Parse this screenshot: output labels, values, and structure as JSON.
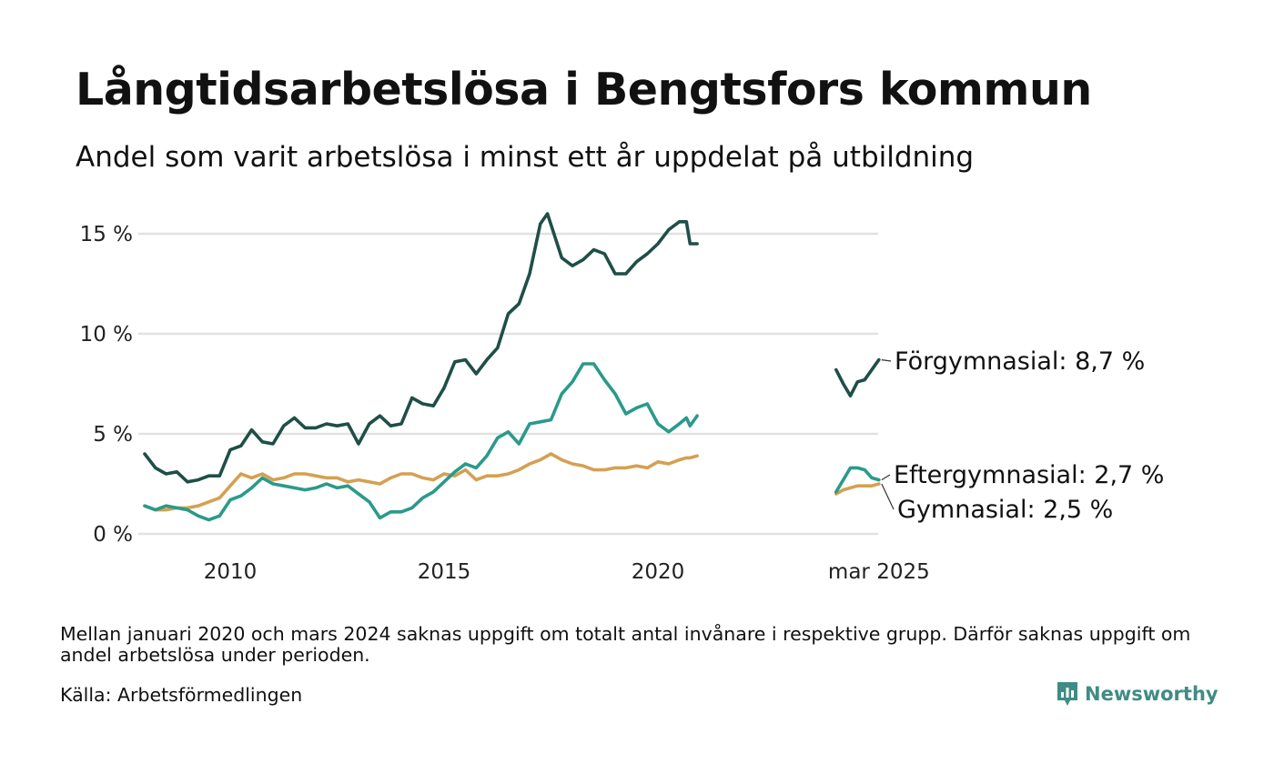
{
  "title": "Långtidsarbetslösa i Bengtsfors kommun",
  "subtitle": "Andel som varit arbetslösa i minst ett år uppdelat på utbildning",
  "footnote": "Mellan januari 2020 och mars 2024 saknas uppgift om totalt antal invånare i respektive grupp. Därför saknas uppgift om andel arbetslösa under perioden.",
  "source": "Källa: Arbetsförmedlingen",
  "logo_text": "Newsworthy",
  "chart_data": {
    "type": "line",
    "title": "Långtidsarbetslösa i Bengtsfors kommun",
    "subtitle": "Andel som varit arbetslösa i minst ett år uppdelat på utbildning",
    "xlabel": "",
    "ylabel": "",
    "ylim": [
      0,
      16
    ],
    "y_ticks": [
      0,
      5,
      10,
      15
    ],
    "y_tick_labels": [
      "0 %",
      "5 %",
      "10 %",
      "15 %"
    ],
    "x_ticks": [
      {
        "x": "2010-01",
        "label": "2010"
      },
      {
        "x": "2015-01",
        "label": "2015"
      },
      {
        "x": "2020-01",
        "label": "2020"
      },
      {
        "x": "2025-03",
        "label": "mar 2025"
      }
    ],
    "grid": true,
    "legend": "direct labels at line ends (right)",
    "colors": {
      "Förgymnasial": "#1f4f47",
      "Eftergymnasial": "#2a9a8b",
      "Gymnasial": "#d4a052",
      "grid": "#e1e1e1"
    },
    "series": [
      {
        "name": "Förgymnasial",
        "end_label": "Förgymnasial: 8,7 %",
        "segments": [
          [
            [
              "2008-01",
              4.0
            ],
            [
              "2008-04",
              3.3
            ],
            [
              "2008-07",
              3.0
            ],
            [
              "2008-10",
              3.1
            ],
            [
              "2009-01",
              2.6
            ],
            [
              "2009-04",
              2.7
            ],
            [
              "2009-07",
              2.9
            ],
            [
              "2009-10",
              2.9
            ],
            [
              "2010-01",
              4.2
            ],
            [
              "2010-04",
              4.4
            ],
            [
              "2010-07",
              5.2
            ],
            [
              "2010-10",
              4.6
            ],
            [
              "2011-01",
              4.5
            ],
            [
              "2011-04",
              5.4
            ],
            [
              "2011-07",
              5.8
            ],
            [
              "2011-10",
              5.3
            ],
            [
              "2012-01",
              5.3
            ],
            [
              "2012-04",
              5.5
            ],
            [
              "2012-07",
              5.4
            ],
            [
              "2012-10",
              5.5
            ],
            [
              "2013-01",
              4.5
            ],
            [
              "2013-04",
              5.5
            ],
            [
              "2013-07",
              5.9
            ],
            [
              "2013-10",
              5.4
            ],
            [
              "2014-01",
              5.5
            ],
            [
              "2014-04",
              6.8
            ],
            [
              "2014-07",
              6.5
            ],
            [
              "2014-10",
              6.4
            ],
            [
              "2015-01",
              7.3
            ],
            [
              "2015-04",
              8.6
            ],
            [
              "2015-07",
              8.7
            ],
            [
              "2015-10",
              8.0
            ],
            [
              "2016-01",
              8.7
            ],
            [
              "2016-04",
              9.3
            ],
            [
              "2016-07",
              11.0
            ],
            [
              "2016-10",
              11.5
            ],
            [
              "2017-01",
              13.0
            ],
            [
              "2017-04",
              15.5
            ],
            [
              "2017-06",
              16.0
            ],
            [
              "2017-10",
              13.8
            ],
            [
              "2018-01",
              13.4
            ],
            [
              "2018-04",
              13.7
            ],
            [
              "2018-07",
              14.2
            ],
            [
              "2018-10",
              14.0
            ],
            [
              "2019-01",
              13.0
            ],
            [
              "2019-04",
              13.0
            ],
            [
              "2019-07",
              13.6
            ],
            [
              "2019-10",
              14.0
            ],
            [
              "2020-01",
              14.5
            ],
            [
              "2020-04",
              15.2
            ],
            [
              "2020-07",
              15.6
            ],
            [
              "2020-09",
              15.6
            ],
            [
              "2020-10",
              14.5
            ],
            [
              "2020-12",
              14.5
            ]
          ],
          [
            [
              "2024-03",
              8.2
            ],
            [
              "2024-05",
              7.5
            ],
            [
              "2024-07",
              6.9
            ],
            [
              "2024-09",
              7.6
            ],
            [
              "2024-11",
              7.7
            ],
            [
              "2025-01",
              8.2
            ],
            [
              "2025-03",
              8.7
            ]
          ]
        ]
      },
      {
        "name": "Eftergymnasial",
        "end_label": "Eftergymnasial: 2,7 %",
        "segments": [
          [
            [
              "2008-01",
              1.4
            ],
            [
              "2008-04",
              1.2
            ],
            [
              "2008-07",
              1.4
            ],
            [
              "2008-10",
              1.3
            ],
            [
              "2009-01",
              1.2
            ],
            [
              "2009-04",
              0.9
            ],
            [
              "2009-07",
              0.7
            ],
            [
              "2009-10",
              0.9
            ],
            [
              "2010-01",
              1.7
            ],
            [
              "2010-04",
              1.9
            ],
            [
              "2010-07",
              2.3
            ],
            [
              "2010-10",
              2.8
            ],
            [
              "2011-01",
              2.5
            ],
            [
              "2011-04",
              2.4
            ],
            [
              "2011-07",
              2.3
            ],
            [
              "2011-10",
              2.2
            ],
            [
              "2012-01",
              2.3
            ],
            [
              "2012-04",
              2.5
            ],
            [
              "2012-07",
              2.3
            ],
            [
              "2012-10",
              2.4
            ],
            [
              "2013-01",
              2.0
            ],
            [
              "2013-04",
              1.6
            ],
            [
              "2013-07",
              0.8
            ],
            [
              "2013-10",
              1.1
            ],
            [
              "2014-01",
              1.1
            ],
            [
              "2014-04",
              1.3
            ],
            [
              "2014-07",
              1.8
            ],
            [
              "2014-10",
              2.1
            ],
            [
              "2015-01",
              2.6
            ],
            [
              "2015-04",
              3.1
            ],
            [
              "2015-07",
              3.5
            ],
            [
              "2015-10",
              3.3
            ],
            [
              "2016-01",
              3.9
            ],
            [
              "2016-04",
              4.8
            ],
            [
              "2016-07",
              5.1
            ],
            [
              "2016-10",
              4.5
            ],
            [
              "2017-01",
              5.5
            ],
            [
              "2017-04",
              5.6
            ],
            [
              "2017-07",
              5.7
            ],
            [
              "2017-10",
              7.0
            ],
            [
              "2018-01",
              7.6
            ],
            [
              "2018-04",
              8.5
            ],
            [
              "2018-07",
              8.5
            ],
            [
              "2018-10",
              7.7
            ],
            [
              "2019-01",
              7.0
            ],
            [
              "2019-04",
              6.0
            ],
            [
              "2019-07",
              6.3
            ],
            [
              "2019-10",
              6.5
            ],
            [
              "2020-01",
              5.5
            ],
            [
              "2020-04",
              5.1
            ],
            [
              "2020-07",
              5.5
            ],
            [
              "2020-09",
              5.8
            ],
            [
              "2020-10",
              5.4
            ],
            [
              "2020-12",
              5.9
            ]
          ],
          [
            [
              "2024-03",
              2.1
            ],
            [
              "2024-05",
              2.7
            ],
            [
              "2024-07",
              3.3
            ],
            [
              "2024-09",
              3.3
            ],
            [
              "2024-11",
              3.2
            ],
            [
              "2025-01",
              2.8
            ],
            [
              "2025-03",
              2.7
            ]
          ]
        ]
      },
      {
        "name": "Gymnasial",
        "end_label": "Gymnasial: 2,5 %",
        "segments": [
          [
            [
              "2008-01",
              1.4
            ],
            [
              "2008-04",
              1.2
            ],
            [
              "2008-07",
              1.2
            ],
            [
              "2008-10",
              1.3
            ],
            [
              "2009-01",
              1.3
            ],
            [
              "2009-04",
              1.4
            ],
            [
              "2009-07",
              1.6
            ],
            [
              "2009-10",
              1.8
            ],
            [
              "2010-01",
              2.4
            ],
            [
              "2010-04",
              3.0
            ],
            [
              "2010-07",
              2.8
            ],
            [
              "2010-10",
              3.0
            ],
            [
              "2011-01",
              2.7
            ],
            [
              "2011-04",
              2.8
            ],
            [
              "2011-07",
              3.0
            ],
            [
              "2011-10",
              3.0
            ],
            [
              "2012-01",
              2.9
            ],
            [
              "2012-04",
              2.8
            ],
            [
              "2012-07",
              2.8
            ],
            [
              "2012-10",
              2.6
            ],
            [
              "2013-01",
              2.7
            ],
            [
              "2013-04",
              2.6
            ],
            [
              "2013-07",
              2.5
            ],
            [
              "2013-10",
              2.8
            ],
            [
              "2014-01",
              3.0
            ],
            [
              "2014-04",
              3.0
            ],
            [
              "2014-07",
              2.8
            ],
            [
              "2014-10",
              2.7
            ],
            [
              "2015-01",
              3.0
            ],
            [
              "2015-04",
              2.9
            ],
            [
              "2015-07",
              3.2
            ],
            [
              "2015-10",
              2.7
            ],
            [
              "2016-01",
              2.9
            ],
            [
              "2016-04",
              2.9
            ],
            [
              "2016-07",
              3.0
            ],
            [
              "2016-10",
              3.2
            ],
            [
              "2017-01",
              3.5
            ],
            [
              "2017-04",
              3.7
            ],
            [
              "2017-07",
              4.0
            ],
            [
              "2017-10",
              3.7
            ],
            [
              "2018-01",
              3.5
            ],
            [
              "2018-04",
              3.4
            ],
            [
              "2018-07",
              3.2
            ],
            [
              "2018-10",
              3.2
            ],
            [
              "2019-01",
              3.3
            ],
            [
              "2019-04",
              3.3
            ],
            [
              "2019-07",
              3.4
            ],
            [
              "2019-10",
              3.3
            ],
            [
              "2020-01",
              3.6
            ],
            [
              "2020-04",
              3.5
            ],
            [
              "2020-07",
              3.7
            ],
            [
              "2020-09",
              3.8
            ],
            [
              "2020-10",
              3.8
            ],
            [
              "2020-12",
              3.9
            ]
          ],
          [
            [
              "2024-03",
              2.0
            ],
            [
              "2024-05",
              2.2
            ],
            [
              "2024-07",
              2.3
            ],
            [
              "2024-09",
              2.4
            ],
            [
              "2024-11",
              2.4
            ],
            [
              "2025-01",
              2.4
            ],
            [
              "2025-03",
              2.5
            ]
          ]
        ]
      }
    ]
  }
}
